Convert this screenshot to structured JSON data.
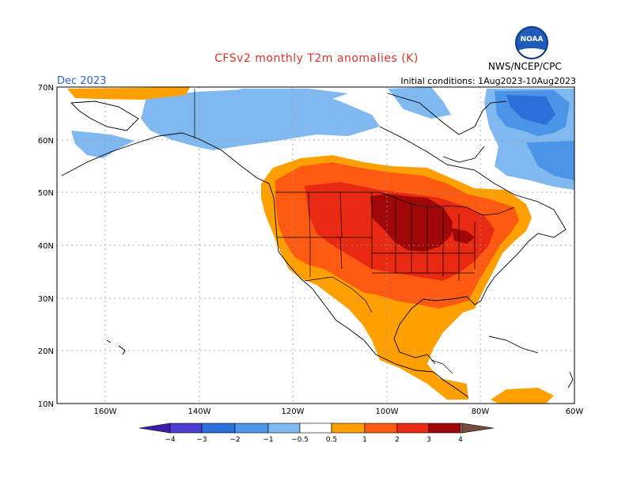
{
  "header": {
    "title": "CFSv2 monthly T2m anomalies (K)",
    "period": "Dec 2023",
    "initial_conditions": "Initial conditions: 1Aug2023-10Aug2023",
    "agency": "NWS/NCEP/CPC",
    "logo_text": "NOAA"
  },
  "map": {
    "lat_labels": [
      "70N",
      "60N",
      "50N",
      "40N",
      "30N",
      "20N",
      "10N"
    ],
    "lon_labels": [
      "160W",
      "140W",
      "120W",
      "100W",
      "80W",
      "60W"
    ]
  },
  "legend": {
    "labels": [
      "−4",
      "−3",
      "−2",
      "−1",
      "−0.5",
      "0.5",
      "1",
      "2",
      "3",
      "4"
    ],
    "colors": {
      "lt_-4": "#3b1fa8",
      "-4_-3": "#4c3fd0",
      "-3_-2": "#2b6fd8",
      "-2_-1": "#4a95e8",
      "-1_-0.5": "#80b8f0",
      "0.5_1": "#ff9f00",
      "1_2": "#ff5a12",
      "2_3": "#e82a12",
      "3_4": "#a00808",
      "gt_4": "#c8a090",
      "gt_4_end": "#7a4a3a"
    }
  }
}
